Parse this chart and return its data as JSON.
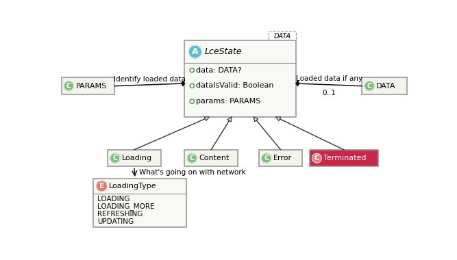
{
  "bg_color": "#ffffff",
  "lcestate_title": "LceState",
  "lcestate_stereotype": "A",
  "lcestate_fields": [
    "data: DATA?",
    "dataIsValid: Boolean",
    "params: PARAMS"
  ],
  "data_dashed_label": "DATA",
  "params_label": "PARAMS",
  "params_stereotype": "C",
  "data_label": "DATA",
  "data_stereotype": "C",
  "arrow_identify_label": "Identify loaded data",
  "arrow_loaded_label1": "Loaded data if any",
  "arrow_loaded_label2": "0..1",
  "subclasses": [
    {
      "name": "Loading",
      "stereotype": "C",
      "bg": "#f0f0e8",
      "tc": "#000000",
      "sc": "#7cbf7c"
    },
    {
      "name": "Content",
      "stereotype": "C",
      "bg": "#f0f0e8",
      "tc": "#000000",
      "sc": "#7cbf7c"
    },
    {
      "name": "Error",
      "stereotype": "C",
      "bg": "#f0f0e8",
      "tc": "#000000",
      "sc": "#7cbf7c"
    },
    {
      "name": "Terminated",
      "stereotype": "C",
      "bg": "#c8274a",
      "tc": "#ffffff",
      "sc": "#e08080"
    }
  ],
  "loading_type_title": "LoadingType",
  "loading_type_stereotype": "E",
  "loading_type_fields": [
    "LOADING",
    "LOADING_MORE",
    "REFRESHING",
    "UPDATING"
  ],
  "circle_A": "#5bbccc",
  "circle_C_green": "#7cbf7c",
  "circle_C_red": "#e08080",
  "circle_E": "#e07870",
  "box_fill": "#eeeee8",
  "box_fill_white": "#f8f8f4",
  "box_border": "#999999",
  "node_fill": "#f4f4ee",
  "node_border": "#999999"
}
